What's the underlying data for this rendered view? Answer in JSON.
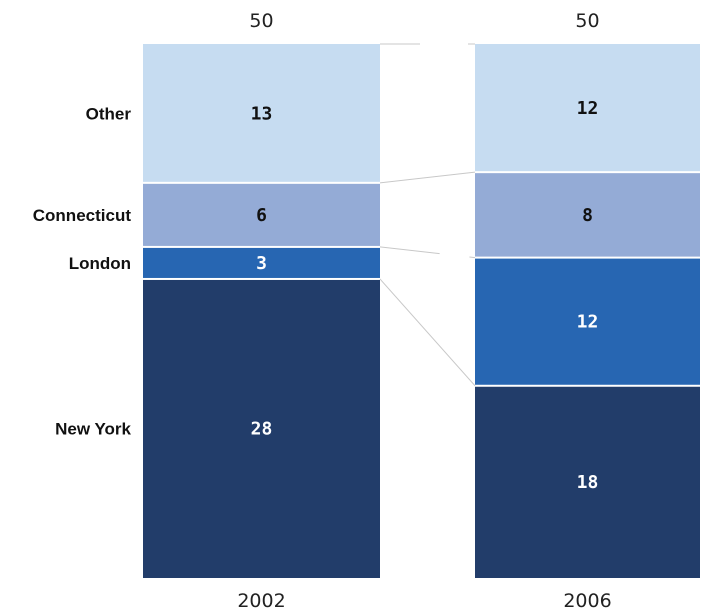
{
  "chart_data": {
    "type": "bar",
    "stacked": true,
    "categories": [
      "2002",
      "2006"
    ],
    "totals": [
      "50",
      "50"
    ],
    "series": [
      {
        "name": "New York",
        "values": [
          28,
          18
        ],
        "color": "#223d6a",
        "label_color": "#ffffff"
      },
      {
        "name": "London",
        "values": [
          3,
          12
        ],
        "color": "#2766b2",
        "label_color": "#ffffff"
      },
      {
        "name": "Connecticut",
        "values": [
          6,
          8
        ],
        "color": "#94abd6",
        "label_color": "#111111"
      },
      {
        "name": "Other",
        "values": [
          13,
          12
        ],
        "color": "#c6dcf1",
        "label_color": "#111111"
      }
    ],
    "title": "",
    "xlabel": "",
    "ylabel": "",
    "ylim": [
      0,
      50
    ],
    "grid": false,
    "legend": "category labels at left of first bar"
  }
}
